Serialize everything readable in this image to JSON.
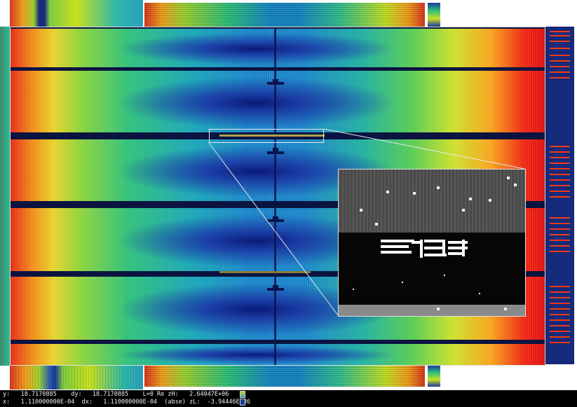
{
  "status": {
    "line1": "y:   18.7170885    dy:   18.7170885    L=0 Re zH:   2.64047E+06",
    "line2": "x:   1.110000000E-04  dx:   1.110000000E-04  (abse) zL:  -3.94446E+06"
  },
  "colors": {
    "hot": "#ee2a12",
    "cold": "#0a1a78",
    "mid": "#2fc07a"
  },
  "inset": {
    "label": "zoomed detail"
  }
}
